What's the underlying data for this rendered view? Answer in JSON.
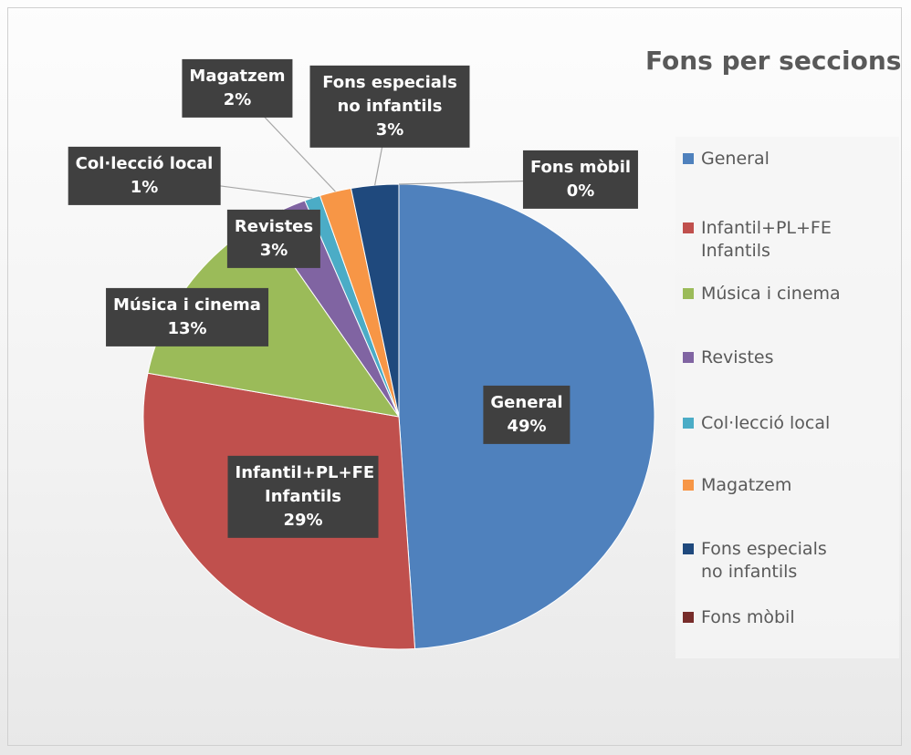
{
  "chart_data": {
    "type": "pie",
    "title": "Fons per seccions",
    "categories": [
      "General",
      "Infantil+PL+FE Infantils",
      "Música i cinema",
      "Revistes",
      "Col·lecció local",
      "Magatzem",
      "Fons especials no infantils",
      "Fons mòbil"
    ],
    "values": [
      49,
      29,
      13,
      3,
      1,
      2,
      3,
      0
    ],
    "value_labels": [
      "49%",
      "29%",
      "13%",
      "3%",
      "1%",
      "2%",
      "3%",
      "0%"
    ],
    "colors": [
      "#4f81bd",
      "#c0504d",
      "#9bbb59",
      "#8064a2",
      "#4bacc6",
      "#f79646",
      "#1f497d",
      "#772c2a"
    ],
    "legend": "right"
  }
}
